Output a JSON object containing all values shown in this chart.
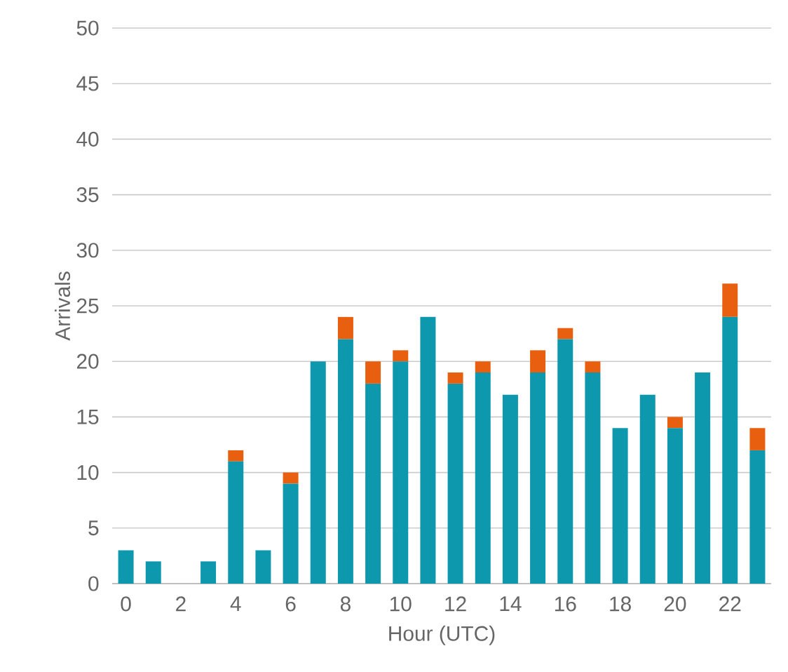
{
  "chart_data": {
    "type": "bar",
    "stacked": true,
    "xlabel": "Hour (UTC)",
    "ylabel": "Arrivals",
    "categories": [
      "0",
      null,
      "2",
      null,
      "4",
      null,
      "6",
      null,
      "8",
      null,
      "10",
      null,
      "12",
      null,
      "14",
      null,
      "16",
      null,
      "18",
      null,
      "20",
      null,
      "22",
      null
    ],
    "series": [
      {
        "color": "#0e98ae",
        "values": [
          3,
          2,
          0,
          2,
          11,
          3,
          9,
          20,
          22,
          18,
          20,
          24,
          18,
          19,
          17,
          19,
          22,
          19,
          14,
          17,
          14,
          19,
          24,
          12
        ]
      },
      {
        "color": "#e8600f",
        "values": [
          0,
          0,
          0,
          0,
          1,
          0,
          1,
          0,
          2,
          2,
          1,
          0,
          1,
          1,
          0,
          2,
          1,
          1,
          0,
          0,
          1,
          0,
          3,
          2
        ]
      }
    ],
    "ylim": [
      0,
      50
    ],
    "yticks": [
      0,
      5,
      10,
      15,
      20,
      25,
      30,
      35,
      40,
      45,
      50
    ],
    "grid": "y"
  }
}
